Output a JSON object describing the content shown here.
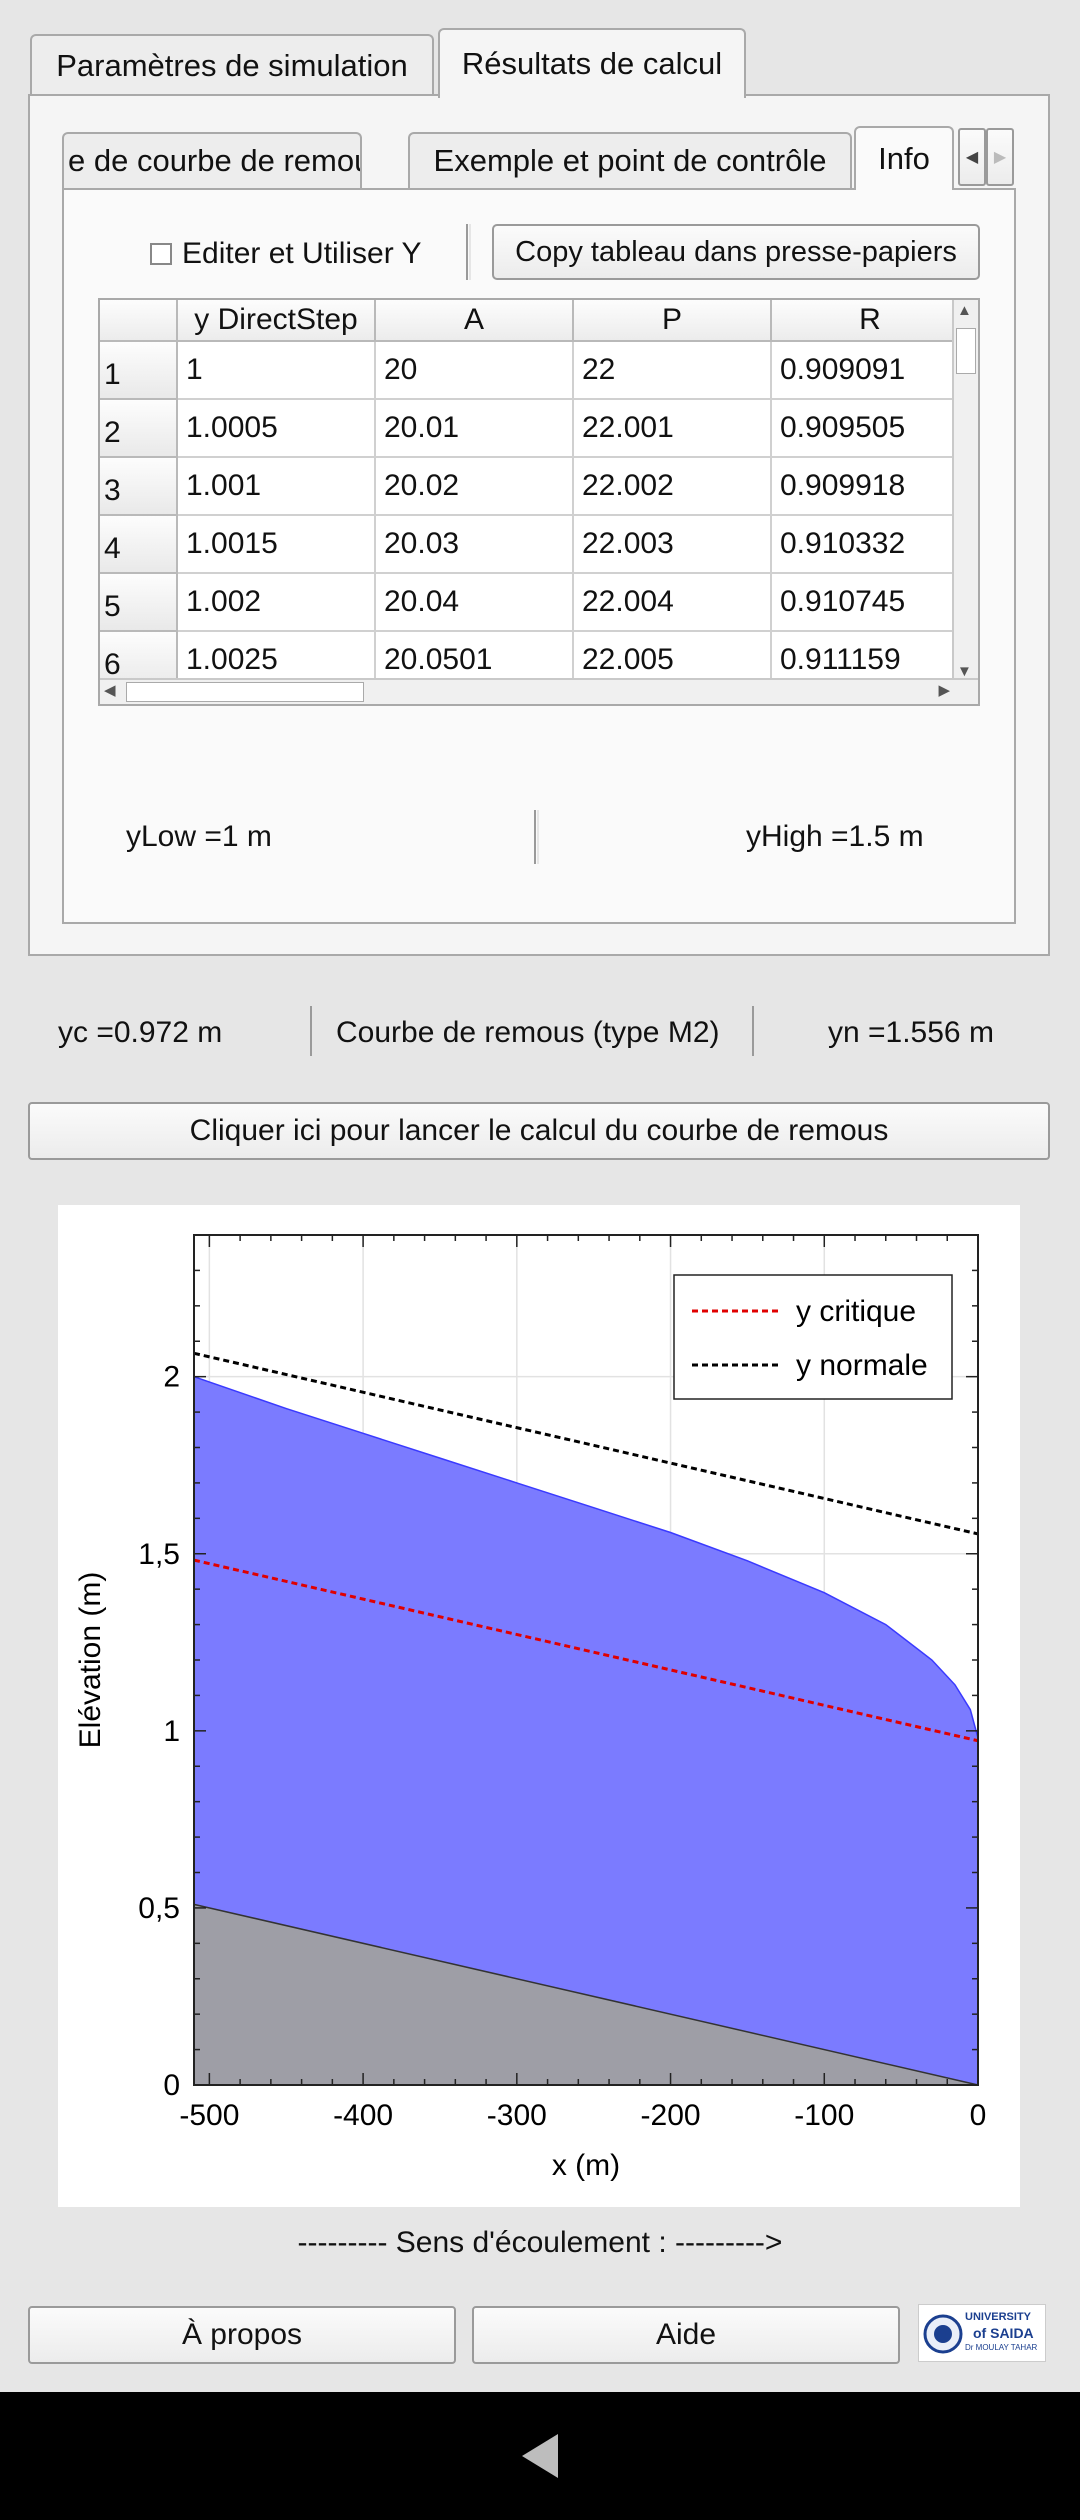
{
  "tabs": [
    {
      "label": "Paramètres de simulation",
      "active": false
    },
    {
      "label": "Résultats de calcul",
      "active": true
    }
  ],
  "subtabs": [
    {
      "label": "e de courbe de remous",
      "active": false
    },
    {
      "label": "Exemple et point de contrôle",
      "active": false
    },
    {
      "label": "Info",
      "active": true
    }
  ],
  "subtab_scroll": {
    "left_icon": "triangle-left-icon",
    "right_icon": "triangle-right-icon"
  },
  "table_tools": {
    "checkbox_label": "Editer et Utiliser Y",
    "checkbox_checked": false,
    "copy_button": "Copy tableau dans presse-papiers"
  },
  "table": {
    "columns": [
      "y DirectStep",
      "A",
      "P",
      "R"
    ],
    "rows": [
      {
        "index": "1",
        "cells": [
          "1",
          "20",
          "22",
          "0.909091"
        ]
      },
      {
        "index": "2",
        "cells": [
          "1.0005",
          "20.01",
          "22.001",
          "0.909505"
        ]
      },
      {
        "index": "3",
        "cells": [
          "1.001",
          "20.02",
          "22.002",
          "0.909918"
        ]
      },
      {
        "index": "4",
        "cells": [
          "1.0015",
          "20.03",
          "22.003",
          "0.910332"
        ]
      },
      {
        "index": "5",
        "cells": [
          "1.002",
          "20.04",
          "22.004",
          "0.910745"
        ]
      },
      {
        "index": "6",
        "cells": [
          "1.0025",
          "20.0501",
          "22.005",
          "0.911159"
        ]
      }
    ]
  },
  "limits": {
    "ylow": "yLow  =1  m",
    "yhigh": "yHigh  =1.5  m"
  },
  "results": {
    "yc": "yc  =0.972  m",
    "curve_type": "Courbe de remous (type M2)",
    "yn": "yn  =1.556  m"
  },
  "run_button": "Cliquer ici pour lancer le calcul du courbe de remous",
  "flow_direction": "--------- Sens d'écoulement : --------->",
  "bottom_buttons": {
    "about": "À propos",
    "help": "Aide"
  },
  "logo": {
    "line1": "UNIVERSITY",
    "line2": "of SAIDA",
    "line3": "Dr MOULAY TAHAR"
  },
  "colors": {
    "fill": "#7b7bff",
    "bed": "#9e9ea6",
    "critical": "#e00000",
    "normal": "#000000"
  },
  "chart_data": {
    "type": "area",
    "title": "",
    "xlabel": "x (m)",
    "ylabel": "Elévation (m)",
    "xlim": [
      -510,
      0
    ],
    "ylim": [
      0,
      2.4
    ],
    "xticks": [
      -500,
      -400,
      -300,
      -200,
      -100,
      0
    ],
    "xtick_labels": [
      "-500",
      "-400",
      "-300",
      "-200",
      "-100",
      "0"
    ],
    "yticks": [
      0,
      0.5,
      1,
      1.5,
      2
    ],
    "ytick_labels": [
      "0",
      "0,5",
      "1",
      "1,5",
      "2"
    ],
    "grid": true,
    "legend_position": "top-right",
    "series": [
      {
        "name": "y critique",
        "style": "dashed",
        "color": "#e00000",
        "x": [
          -510,
          0
        ],
        "y": [
          1.482,
          0.972
        ]
      },
      {
        "name": "y normale",
        "style": "dashed",
        "color": "#000000",
        "x": [
          -510,
          0
        ],
        "y": [
          2.066,
          1.556
        ]
      }
    ],
    "water_surface": {
      "x": [
        -510,
        -450,
        -400,
        -350,
        -300,
        -250,
        -200,
        -150,
        -100,
        -60,
        -30,
        -15,
        -5,
        0
      ],
      "y": [
        2.0,
        1.91,
        1.84,
        1.77,
        1.7,
        1.63,
        1.56,
        1.48,
        1.39,
        1.3,
        1.2,
        1.13,
        1.06,
        0.98
      ]
    },
    "bed": {
      "x": [
        -510,
        0
      ],
      "y": [
        0.51,
        0.0
      ]
    }
  }
}
